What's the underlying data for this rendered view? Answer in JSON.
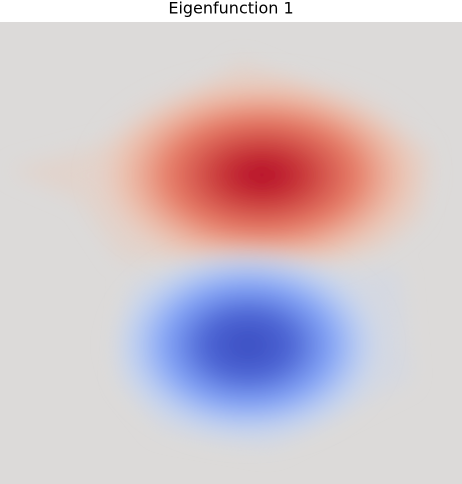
{
  "chart_data": {
    "type": "heatmap",
    "title": "Eigenfunction 1"
  }
}
